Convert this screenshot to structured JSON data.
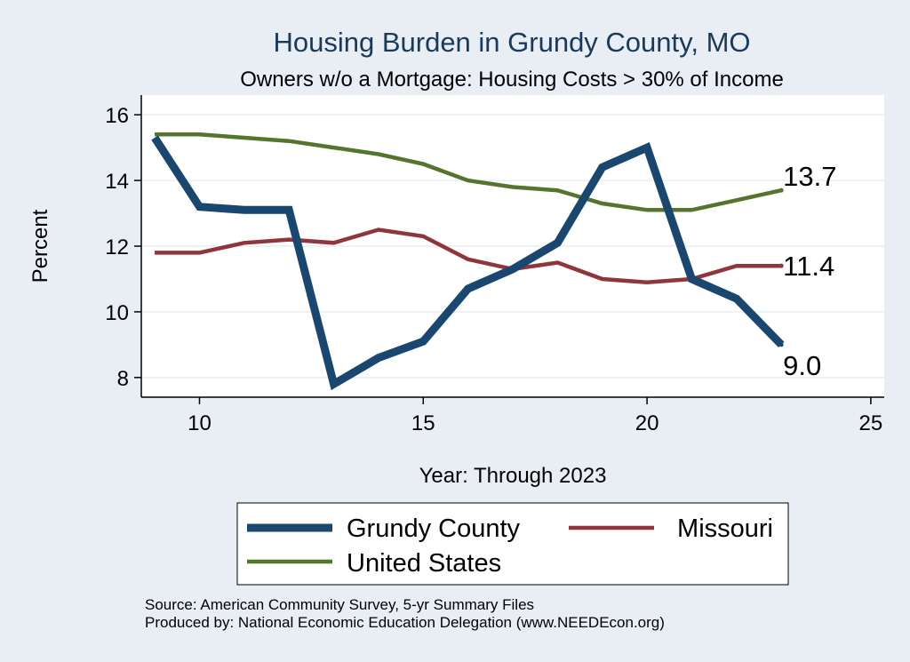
{
  "chart_data": {
    "type": "line",
    "title": "Housing Burden in Grundy County, MO",
    "subtitle": "Owners w/o a Mortgage: Housing Costs > 30% of Income",
    "xlabel": "Year: Through 2023",
    "ylabel": "Percent",
    "xlim": [
      8.7,
      25.3
    ],
    "ylim": [
      7.4,
      16.6
    ],
    "xticks": [
      10,
      15,
      20,
      25
    ],
    "yticks": [
      8,
      10,
      12,
      14,
      16
    ],
    "grid": true,
    "legend_position": "bottom",
    "x": [
      9,
      10,
      11,
      12,
      13,
      14,
      15,
      16,
      17,
      18,
      19,
      20,
      21,
      22,
      23
    ],
    "series": [
      {
        "name": "Grundy County",
        "color": "#1a476f",
        "values": [
          15.3,
          13.2,
          13.1,
          13.1,
          7.8,
          8.6,
          9.1,
          10.7,
          11.3,
          12.1,
          14.4,
          15.0,
          11.0,
          10.4,
          9.0
        ],
        "end_label": "9.0"
      },
      {
        "name": "Missouri",
        "color": "#90353b",
        "values": [
          11.8,
          11.8,
          12.1,
          12.2,
          12.1,
          12.5,
          12.3,
          11.6,
          11.3,
          11.5,
          11.0,
          10.9,
          11.0,
          11.4,
          11.4
        ],
        "end_label": "11.4"
      },
      {
        "name": "United States",
        "color": "#55752f",
        "values": [
          15.4,
          15.4,
          15.3,
          15.2,
          15.0,
          14.8,
          14.5,
          14.0,
          13.8,
          13.7,
          13.3,
          13.1,
          13.1,
          13.4,
          13.7
        ],
        "end_label": "13.7"
      }
    ]
  },
  "notes": {
    "source": "Source: American Community Survey, 5-yr Summary Files",
    "produced": "Produced by: National Economic Education Delegation (www.NEEDEcon.org)"
  }
}
